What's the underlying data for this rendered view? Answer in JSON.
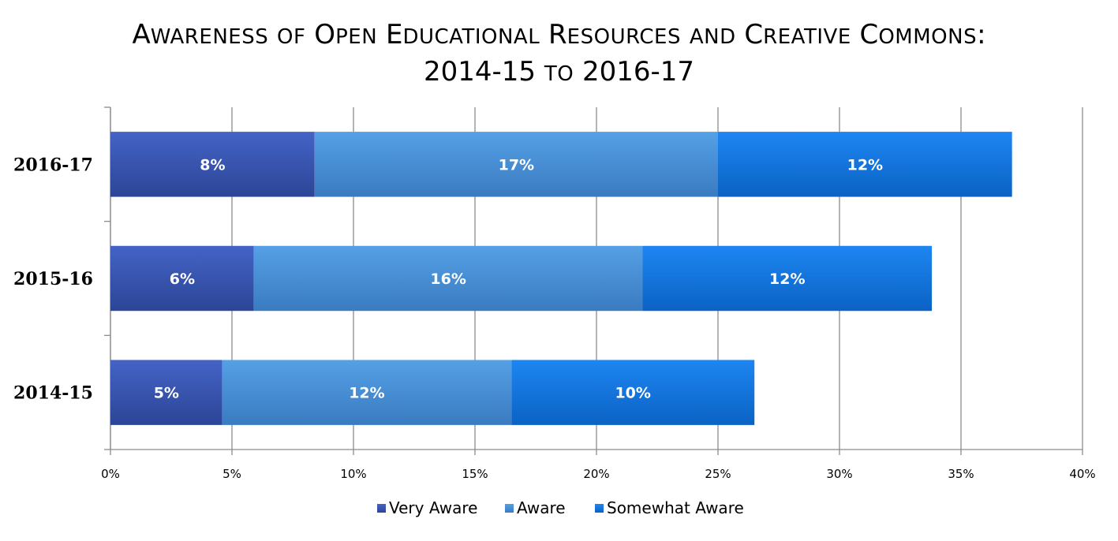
{
  "chart_data": {
    "type": "bar",
    "orientation": "horizontal",
    "stacked": true,
    "title": "Awareness of Open Educational Resources and Creative Commons:",
    "subtitle": "2014-15 to 2016-17",
    "categories": [
      "2016-17",
      "2015-16",
      "2014-15"
    ],
    "series": [
      {
        "name": "Very Aware",
        "values": [
          8.4,
          5.9,
          4.6
        ],
        "labels": [
          "8%",
          "6%",
          "5%"
        ],
        "color": "#3a57b8"
      },
      {
        "name": "Aware",
        "values": [
          16.6,
          16.0,
          11.9
        ],
        "labels": [
          "17%",
          "16%",
          "12%"
        ],
        "color": "#4a92d8"
      },
      {
        "name": "Somewhat Aware",
        "values": [
          12.1,
          11.9,
          10.0
        ],
        "labels": [
          "12%",
          "12%",
          "10%"
        ],
        "color": "#1279e8"
      }
    ],
    "xlim": [
      0,
      40
    ],
    "xticks": [
      0,
      5,
      10,
      15,
      20,
      25,
      30,
      35,
      40
    ],
    "xtick_labels": [
      "0%",
      "5%",
      "10%",
      "15%",
      "20%",
      "25%",
      "30%",
      "35%",
      "40%"
    ],
    "xlabel": "",
    "ylabel": "",
    "grid": true,
    "legend_position": "bottom"
  }
}
